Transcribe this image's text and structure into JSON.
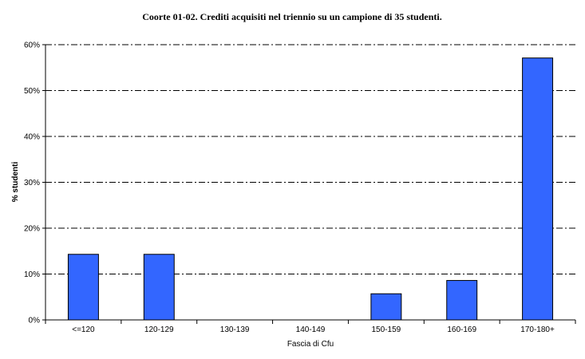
{
  "chart_data": {
    "type": "bar",
    "title": "Coorte 01-02.  Crediti acquisiti nel triennio su un campione di 35 studenti.",
    "xlabel": "Fascia di Cfu",
    "ylabel": "% studenti",
    "categories": [
      "<=120",
      "120-129",
      "130-139",
      "140-149",
      "150-159",
      "160-169",
      "170-180+"
    ],
    "values": [
      14.3,
      14.3,
      0,
      0,
      5.7,
      8.6,
      57.1
    ],
    "ylim": [
      0,
      60
    ],
    "yticks": [
      0,
      10,
      20,
      30,
      40,
      50,
      60
    ],
    "ytick_labels": [
      "0%",
      "10%",
      "20%",
      "30%",
      "40%",
      "50%",
      "60%"
    ],
    "grid": true,
    "bar_color": "#3366ff"
  }
}
